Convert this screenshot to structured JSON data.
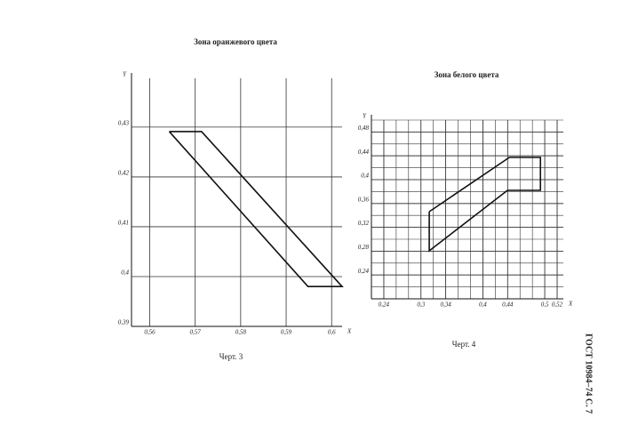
{
  "chart_data": [
    {
      "type": "line",
      "title": "Зона оранжевого цвета",
      "caption": "Черт. 3",
      "x_label": "X",
      "y_label": "Y",
      "xlim": [
        0.556,
        0.6023
      ],
      "ylim": [
        0.39,
        0.4398
      ],
      "xticks": [
        {
          "value": 0.56,
          "label": "0,56"
        },
        {
          "value": 0.57,
          "label": "0,57"
        },
        {
          "value": 0.58,
          "label": "0,58"
        },
        {
          "value": 0.59,
          "label": "0,59"
        },
        {
          "value": 0.6,
          "label": "0,6"
        }
      ],
      "yticks": [
        {
          "value": 0.39,
          "label": "0,39"
        },
        {
          "value": 0.4,
          "label": "0,4"
        },
        {
          "value": 0.41,
          "label": "0,41"
        },
        {
          "value": 0.42,
          "label": "0,42"
        },
        {
          "value": 0.43,
          "label": "0,43"
        }
      ],
      "grid": true,
      "color": "#111111",
      "series": [
        {
          "x": [
            0.5643,
            0.5714,
            0.6023,
            0.5948,
            0.5643
          ],
          "values": [
            0.4291,
            0.4291,
            0.398,
            0.398,
            0.4291
          ]
        }
      ]
    },
    {
      "type": "line",
      "title": "Зона белого цвета",
      "caption": "Черт. 4",
      "x_label": "X",
      "y_label": "Y",
      "xlim": [
        0.22,
        0.53
      ],
      "ylim": [
        0.2,
        0.5
      ],
      "xticks": [
        {
          "value": 0.24,
          "label": "0,24"
        },
        {
          "value": 0.3,
          "label": "0,3"
        },
        {
          "value": 0.34,
          "label": "0,34"
        },
        {
          "value": 0.4,
          "label": "0,4"
        },
        {
          "value": 0.44,
          "label": "0,44"
        },
        {
          "value": 0.5,
          "label": "0,5"
        },
        {
          "value": 0.52,
          "label": "0,52"
        }
      ],
      "yticks": [
        {
          "value": 0.24,
          "label": "0,24"
        },
        {
          "value": 0.28,
          "label": "0,28"
        },
        {
          "value": 0.32,
          "label": "0,32"
        },
        {
          "value": 0.36,
          "label": "0,36"
        },
        {
          "value": 0.4,
          "label": "0,4"
        },
        {
          "value": 0.44,
          "label": "0,44"
        },
        {
          "value": 0.48,
          "label": "0,48"
        }
      ],
      "grid": true,
      "minor_grid": 0.02,
      "color": "#111111",
      "series": [
        {
          "x": [
            0.3134,
            0.4427,
            0.493,
            0.493,
            0.4398,
            0.3134,
            0.3134
          ],
          "values": [
            0.3463,
            0.4373,
            0.4373,
            0.3821,
            0.3821,
            0.2806,
            0.3463
          ]
        }
      ]
    }
  ],
  "side_text": "ГОСТ 10984–74 С. 7"
}
